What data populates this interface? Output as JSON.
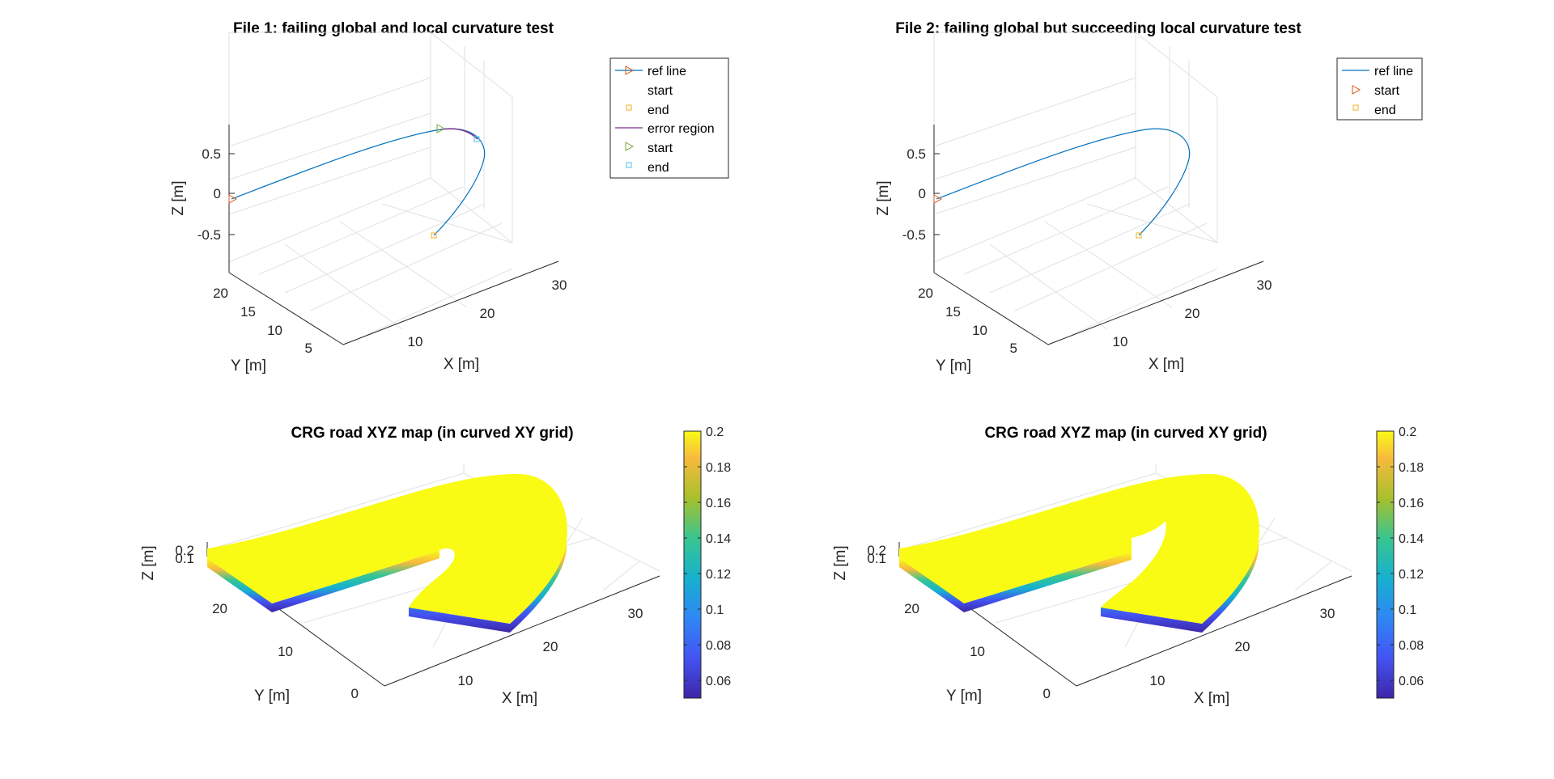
{
  "figure": {
    "colors": {
      "ref_line": "#0072BD",
      "start_marker": "#D95319",
      "end_marker": "#EDB120",
      "error_region": "#7E2F8E",
      "error_start": "#77AC30",
      "error_end": "#4DBEEE"
    },
    "colormap": "parula"
  },
  "chart_data": [
    {
      "type": "line",
      "title": "File 1: failing global and local curvature test",
      "xlabel": "X [m]",
      "ylabel": "Y [m]",
      "zlabel": "Z [m]",
      "xticks": [
        "10",
        "20",
        "30"
      ],
      "yticks": [
        "5",
        "10",
        "15",
        "20"
      ],
      "zticks": [
        "0.5",
        "0",
        "-0.5"
      ],
      "grid": true,
      "legend_position": "top-right",
      "legend": [
        "ref line",
        "start",
        "end",
        "error region",
        "start",
        "end"
      ],
      "series": [
        {
          "name": "ref line",
          "points": [
            [
              2,
              10,
              0
            ],
            [
              6,
              12,
              0
            ],
            [
              10,
              14,
              0
            ],
            [
              14,
              16,
              0
            ],
            [
              18,
              18,
              0
            ],
            [
              21,
              19,
              0
            ],
            [
              24,
              18.5,
              0
            ],
            [
              26,
              17,
              0
            ],
            [
              27,
              14.5,
              0
            ],
            [
              26.5,
              12,
              0
            ],
            [
              25.5,
              9.5,
              0
            ],
            [
              24.5,
              7,
              0
            ]
          ]
        },
        {
          "name": "error region",
          "points": [
            [
              21,
              19,
              0
            ],
            [
              24,
              18.5,
              0
            ],
            [
              25.5,
              17.5,
              0
            ]
          ]
        }
      ],
      "markers": [
        {
          "name": "start",
          "point": [
            2,
            10,
            0
          ]
        },
        {
          "name": "end",
          "point": [
            24.5,
            7,
            0
          ]
        },
        {
          "name": "start",
          "point": [
            21,
            19,
            0
          ]
        },
        {
          "name": "end",
          "point": [
            25.5,
            17.5,
            0
          ]
        }
      ]
    },
    {
      "type": "line",
      "title": "File 2: failing global but succeeding local curvature test",
      "xlabel": "X [m]",
      "ylabel": "Y [m]",
      "zlabel": "Z [m]",
      "xticks": [
        "10",
        "20",
        "30"
      ],
      "yticks": [
        "5",
        "10",
        "15",
        "20"
      ],
      "zticks": [
        "0.5",
        "0",
        "-0.5"
      ],
      "grid": true,
      "legend_position": "top-right",
      "legend": [
        "ref line",
        "start",
        "end"
      ],
      "series": [
        {
          "name": "ref line",
          "points": [
            [
              2,
              10,
              0
            ],
            [
              6,
              12,
              0
            ],
            [
              10,
              14,
              0
            ],
            [
              14,
              16,
              0
            ],
            [
              18,
              18,
              0
            ],
            [
              21,
              19,
              0
            ],
            [
              24,
              18.5,
              0
            ],
            [
              26,
              17,
              0
            ],
            [
              27,
              14.5,
              0
            ],
            [
              26.5,
              12,
              0
            ],
            [
              25.5,
              9.5,
              0
            ],
            [
              24.5,
              7,
              0
            ]
          ]
        }
      ],
      "markers": [
        {
          "name": "start",
          "point": [
            2,
            10,
            0
          ]
        },
        {
          "name": "end",
          "point": [
            24.5,
            7,
            0
          ]
        }
      ]
    },
    {
      "type": "heatmap",
      "title": "CRG road XYZ map (in curved XY grid)",
      "xlabel": "X [m]",
      "ylabel": "Y [m]",
      "zlabel": "Z [m]",
      "xticks": [
        "10",
        "20",
        "30"
      ],
      "yticks": [
        "0",
        "10",
        "20"
      ],
      "zticks": [
        "0.2",
        "0.1"
      ],
      "colorbar_ticks": [
        "0.2",
        "0.18",
        "0.16",
        "0.14",
        "0.12",
        "0.1",
        "0.08",
        "0.06"
      ],
      "colorbar_range": [
        0.05,
        0.2
      ],
      "grid": true
    },
    {
      "type": "heatmap",
      "title": "CRG road XYZ map (in curved XY grid)",
      "xlabel": "X [m]",
      "ylabel": "Y [m]",
      "zlabel": "Z [m]",
      "xticks": [
        "10",
        "20",
        "30"
      ],
      "yticks": [
        "0",
        "10",
        "20"
      ],
      "zticks": [
        "0.2",
        "0.1"
      ],
      "colorbar_ticks": [
        "0.2",
        "0.18",
        "0.16",
        "0.14",
        "0.12",
        "0.1",
        "0.08",
        "0.06"
      ],
      "colorbar_range": [
        0.05,
        0.2
      ],
      "grid": true
    }
  ]
}
